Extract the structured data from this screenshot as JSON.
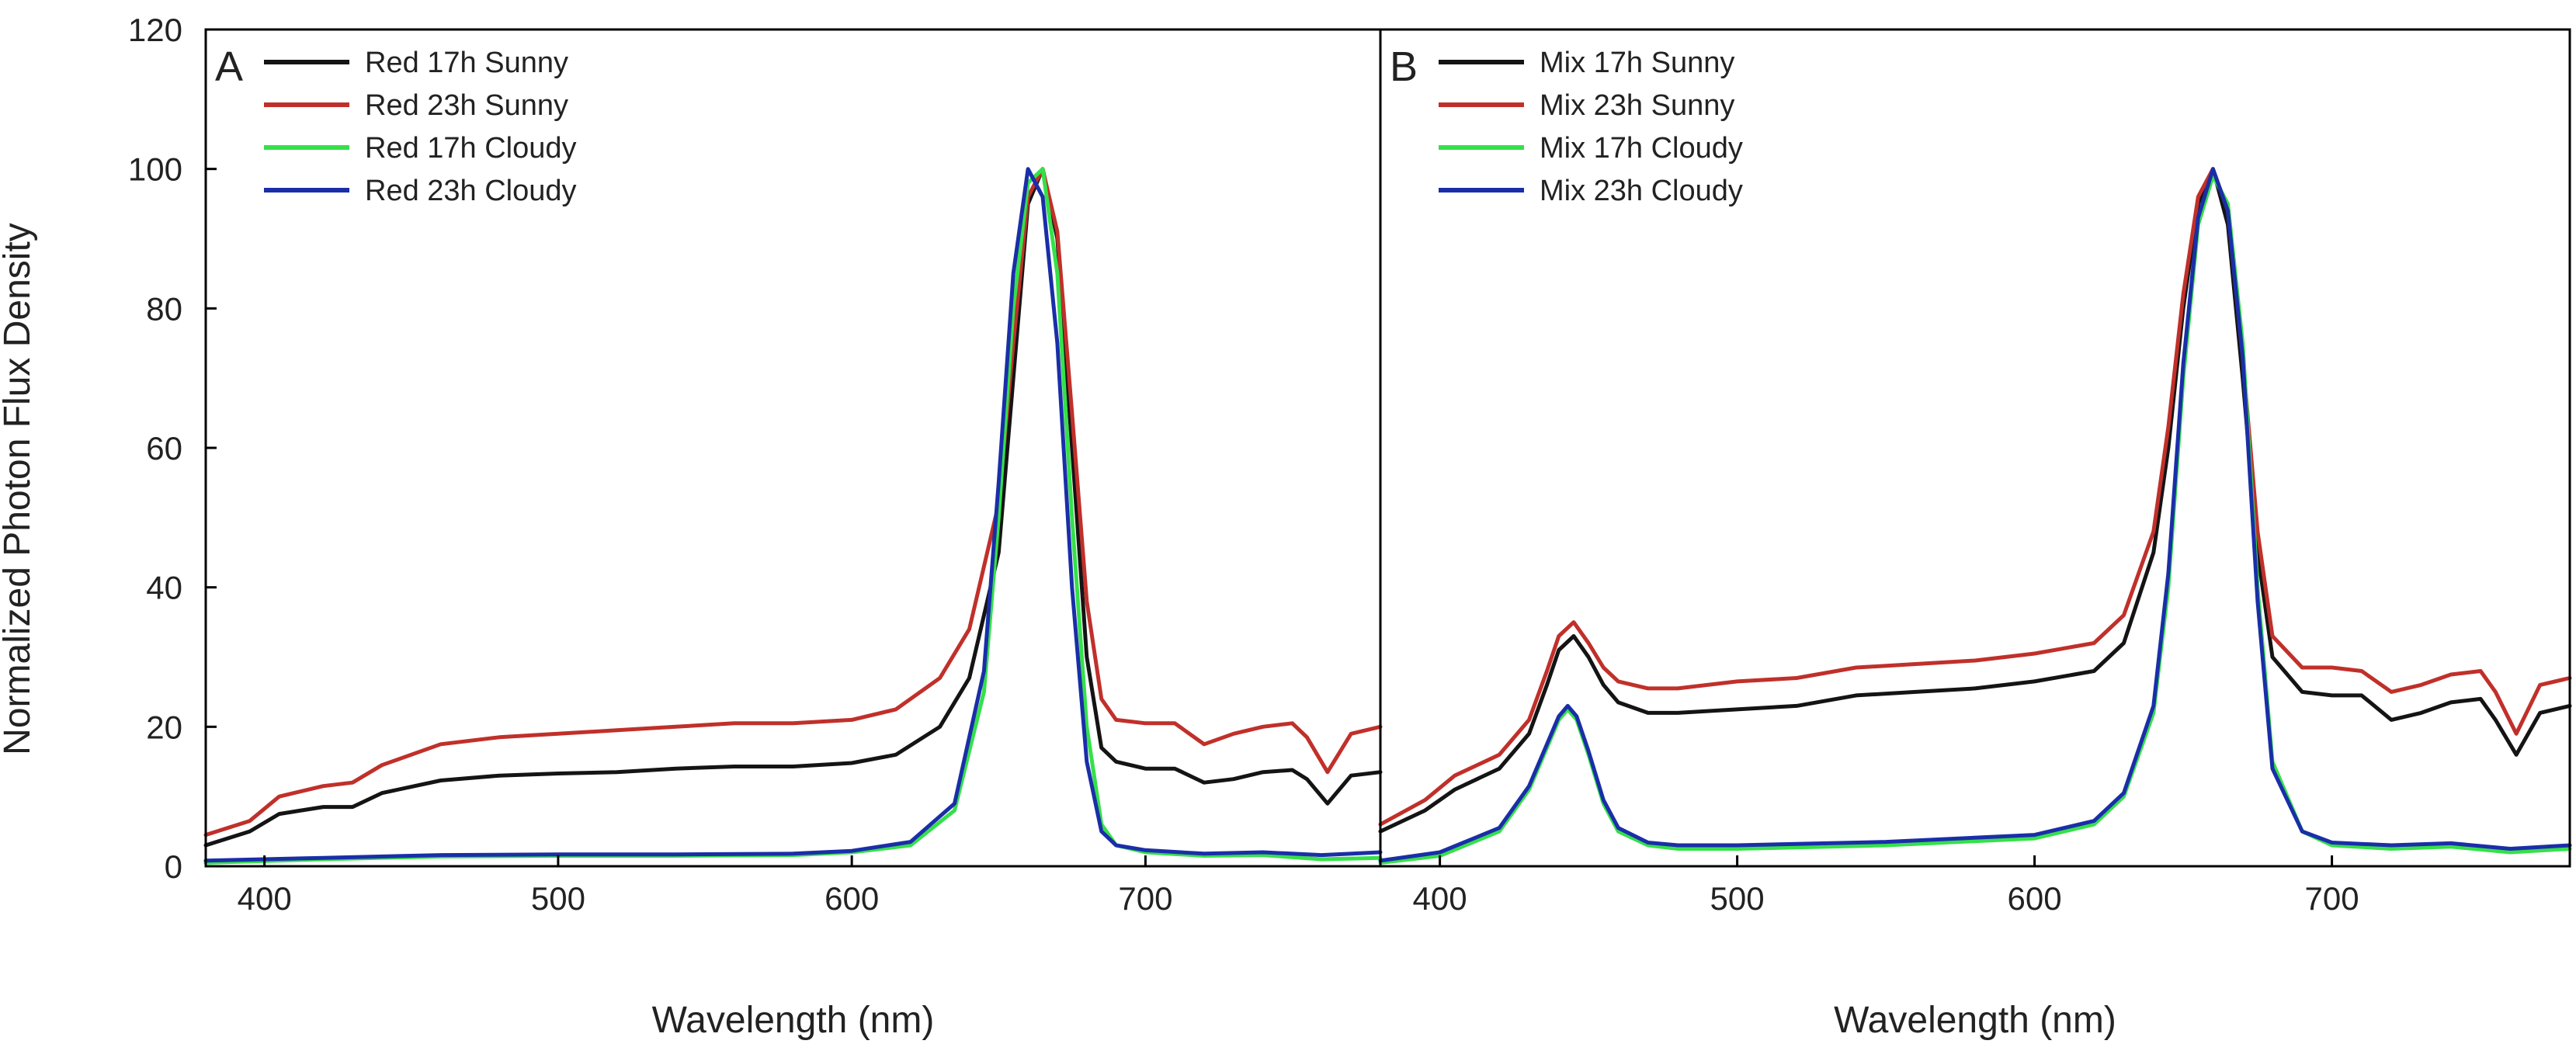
{
  "chart_data": {
    "type": "line",
    "ylabel": "Normalized Photon Flux Density",
    "xlabel": "Wavelength (nm)",
    "xlim": [
      380,
      780
    ],
    "ylim": [
      0,
      120
    ],
    "yticks": [
      0,
      20,
      40,
      60,
      80,
      100,
      120
    ],
    "xticks": [
      400,
      500,
      600,
      700
    ],
    "colors": {
      "Sunny17": "#141414",
      "Sunny23": "#c0302a",
      "Cloudy17": "#35e04a",
      "Cloudy23": "#1a2ea8"
    },
    "panels": [
      {
        "letter": "A",
        "series": [
          {
            "name": "Red 17h Sunny",
            "color": "#141414",
            "x": [
              380,
              395,
              405,
              420,
              430,
              440,
              460,
              480,
              500,
              520,
              540,
              560,
              580,
              600,
              615,
              630,
              640,
              650,
              655,
              660,
              665,
              670,
              675,
              680,
              685,
              690,
              700,
              710,
              720,
              730,
              740,
              750,
              755,
              762,
              770,
              780
            ],
            "y": [
              3,
              5,
              7.5,
              8.5,
              8.5,
              10.5,
              12.3,
              13,
              13.3,
              13.5,
              14,
              14.3,
              14.3,
              14.8,
              16,
              20,
              27,
              45,
              70,
              95,
              100,
              90,
              60,
              30,
              17,
              15,
              14,
              14,
              12,
              12.5,
              13.5,
              13.8,
              12.5,
              9,
              13,
              13.5
            ]
          },
          {
            "name": "Red 23h Sunny",
            "color": "#c0302a",
            "x": [
              380,
              395,
              405,
              420,
              430,
              440,
              460,
              480,
              500,
              520,
              540,
              560,
              580,
              600,
              615,
              630,
              640,
              650,
              655,
              660,
              665,
              670,
              675,
              680,
              685,
              690,
              700,
              710,
              720,
              730,
              740,
              750,
              755,
              762,
              770,
              780
            ],
            "y": [
              4.5,
              6.5,
              10,
              11.5,
              12,
              14.5,
              17.5,
              18.5,
              19,
              19.5,
              20,
              20.5,
              20.5,
              21,
              22.5,
              27,
              34,
              52,
              75,
              96,
              100,
              91,
              65,
              38,
              24,
              21,
              20.5,
              20.5,
              17.5,
              19,
              20,
              20.5,
              18.5,
              13.5,
              19,
              20
            ]
          },
          {
            "name": "Red 17h Cloudy",
            "color": "#35e04a",
            "x": [
              380,
              420,
              460,
              500,
              540,
              580,
              600,
              620,
              635,
              645,
              650,
              655,
              660,
              665,
              670,
              675,
              680,
              685,
              690,
              700,
              720,
              740,
              760,
              780
            ],
            "y": [
              0.5,
              1,
              1.4,
              1.5,
              1.5,
              1.6,
              2,
              3,
              8,
              25,
              50,
              80,
              98,
              100,
              85,
              50,
              20,
              6,
              3,
              2,
              1.5,
              1.6,
              1,
              1.2
            ]
          },
          {
            "name": "Red 23h Cloudy",
            "color": "#1a2ea8",
            "x": [
              380,
              420,
              460,
              500,
              540,
              580,
              600,
              620,
              635,
              645,
              650,
              655,
              660,
              665,
              670,
              675,
              680,
              685,
              690,
              700,
              720,
              740,
              760,
              780
            ],
            "y": [
              0.8,
              1.2,
              1.6,
              1.7,
              1.7,
              1.8,
              2.2,
              3.5,
              9,
              28,
              55,
              85,
              100,
              96,
              75,
              40,
              15,
              5,
              3,
              2.3,
              1.8,
              2,
              1.6,
              2
            ]
          }
        ]
      },
      {
        "letter": "B",
        "series": [
          {
            "name": "Mix 17h Sunny",
            "color": "#141414",
            "x": [
              380,
              395,
              405,
              420,
              430,
              436,
              440,
              445,
              450,
              455,
              460,
              470,
              480,
              500,
              520,
              540,
              560,
              580,
              600,
              620,
              630,
              640,
              645,
              650,
              655,
              660,
              665,
              670,
              675,
              680,
              690,
              700,
              710,
              720,
              730,
              740,
              750,
              755,
              762,
              770,
              780
            ],
            "y": [
              5,
              8,
              11,
              14,
              19,
              26,
              31,
              33,
              30,
              26,
              23.5,
              22,
              22,
              22.5,
              23,
              24.5,
              25,
              25.5,
              26.5,
              28,
              32,
              45,
              60,
              80,
              95,
              100,
              92,
              70,
              45,
              30,
              25,
              24.5,
              24.5,
              21,
              22,
              23.5,
              24,
              21,
              16,
              22,
              23
            ]
          },
          {
            "name": "Mix 23h Sunny",
            "color": "#c0302a",
            "x": [
              380,
              395,
              405,
              420,
              430,
              436,
              440,
              445,
              450,
              455,
              460,
              470,
              480,
              500,
              520,
              540,
              560,
              580,
              600,
              620,
              630,
              640,
              645,
              650,
              655,
              660,
              665,
              670,
              675,
              680,
              690,
              700,
              710,
              720,
              730,
              740,
              750,
              755,
              762,
              770,
              780
            ],
            "y": [
              6,
              9.5,
              13,
              16,
              21,
              28,
              33,
              35,
              32,
              28.5,
              26.5,
              25.5,
              25.5,
              26.5,
              27,
              28.5,
              29,
              29.5,
              30.5,
              32,
              36,
              48,
              63,
              82,
              96,
              100,
              94,
              73,
              48,
              33,
              28.5,
              28.5,
              28,
              25,
              26,
              27.5,
              28,
              25,
              19,
              26,
              27
            ]
          },
          {
            "name": "Mix 17h Cloudy",
            "color": "#35e04a",
            "x": [
              380,
              400,
              420,
              430,
              436,
              440,
              443,
              446,
              450,
              455,
              460,
              470,
              480,
              500,
              550,
              600,
              620,
              630,
              640,
              645,
              650,
              655,
              660,
              665,
              670,
              675,
              680,
              690,
              700,
              720,
              740,
              760,
              780
            ],
            "y": [
              0.5,
              1.5,
              5,
              11,
              17,
              21,
              22.5,
              21,
              16,
              9,
              5,
              3,
              2.5,
              2.5,
              3,
              4,
              6,
              10,
              22,
              40,
              70,
              92,
              99,
              95,
              75,
              40,
              15,
              5,
              3,
              2.5,
              2.8,
              2,
              2.5
            ]
          },
          {
            "name": "Mix 23h Cloudy",
            "color": "#1a2ea8",
            "x": [
              380,
              400,
              420,
              430,
              436,
              440,
              443,
              446,
              450,
              455,
              460,
              470,
              480,
              500,
              550,
              600,
              620,
              630,
              640,
              645,
              650,
              655,
              660,
              665,
              670,
              675,
              680,
              690,
              700,
              720,
              740,
              760,
              780
            ],
            "y": [
              0.8,
              2,
              5.5,
              11.5,
              17.5,
              21.5,
              23,
              21.5,
              16.5,
              9.5,
              5.5,
              3.4,
              3,
              3,
              3.5,
              4.5,
              6.5,
              10.5,
              23,
              42,
              72,
              93,
              100,
              94,
              73,
              38,
              14,
              5,
              3.4,
              3,
              3.3,
              2.5,
              3
            ]
          }
        ]
      }
    ]
  }
}
